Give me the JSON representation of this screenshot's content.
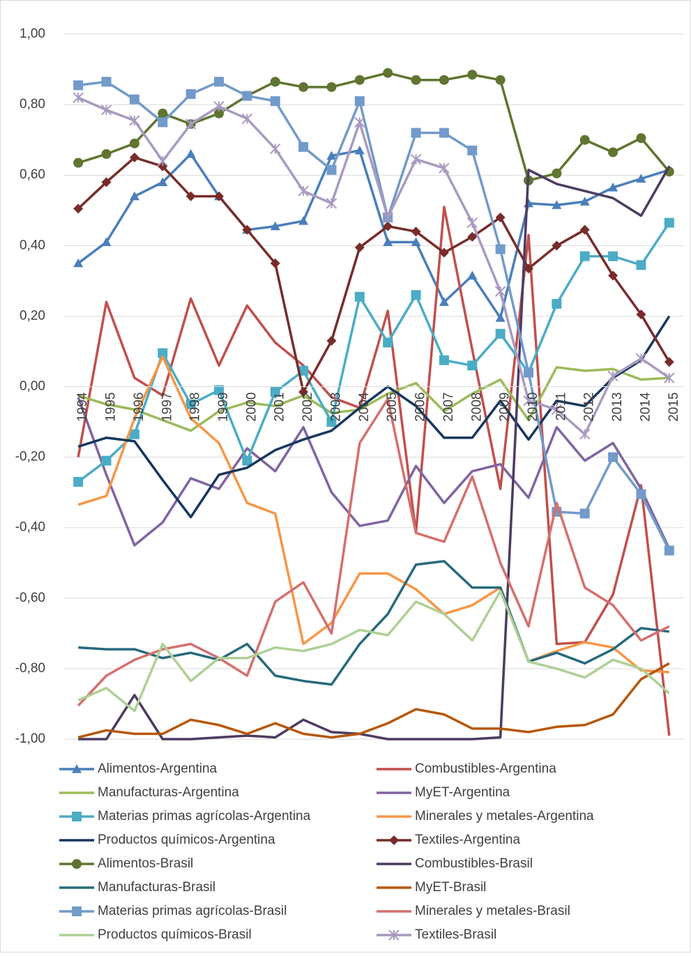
{
  "chart_data": {
    "type": "line",
    "categories": [
      "1994",
      "1995",
      "1996",
      "1997",
      "1998",
      "1999",
      "2000",
      "2001",
      "2002",
      "2003",
      "2004",
      "2005",
      "2006",
      "2007",
      "2008",
      "2009",
      "2010",
      "2011",
      "2012",
      "2013",
      "2014",
      "2015"
    ],
    "ylim": [
      -1,
      1
    ],
    "yticks": [
      {
        "value": -1,
        "label": "-1,00"
      },
      {
        "value": -0.8,
        "label": "-0,80"
      },
      {
        "value": -0.6,
        "label": "-0,60"
      },
      {
        "value": -0.4,
        "label": "-0,40"
      },
      {
        "value": -0.2,
        "label": "-0,20"
      },
      {
        "value": 0,
        "label": "0,00"
      },
      {
        "value": 0.2,
        "label": "0,20"
      },
      {
        "value": 0.4,
        "label": "0,40"
      },
      {
        "value": 0.6,
        "label": "0,60"
      },
      {
        "value": 0.8,
        "label": "0,80"
      },
      {
        "value": 1,
        "label": "1,00"
      }
    ],
    "grid": true,
    "legend": "bottom",
    "series": [
      {
        "name": "Alimentos-Argentina",
        "color": "#4a7ebb",
        "marker": "triangle",
        "values": [
          0.35,
          0.41,
          0.54,
          0.58,
          0.66,
          0.54,
          0.445,
          0.455,
          0.47,
          0.655,
          0.67,
          0.41,
          0.41,
          0.24,
          0.315,
          0.195,
          0.52,
          0.515,
          0.525,
          0.565,
          0.59,
          0.615
        ]
      },
      {
        "name": "Combustibles-Argentina",
        "color": "#c0504d",
        "marker": "none",
        "values": [
          -0.2,
          0.24,
          0.025,
          -0.025,
          0.25,
          0.06,
          0.23,
          0.125,
          0.06,
          -0.03,
          -0.06,
          0.215,
          -0.415,
          0.51,
          0.105,
          -0.29,
          0.43,
          -0.73,
          -0.725,
          -0.59,
          -0.28,
          -0.99
        ]
      },
      {
        "name": "Manufacturas-Argentina",
        "color": "#9bbb59",
        "marker": "none",
        "values": [
          -0.025,
          -0.05,
          -0.065,
          -0.095,
          -0.125,
          -0.07,
          -0.045,
          -0.055,
          -0.025,
          -0.075,
          -0.065,
          -0.02,
          0.01,
          -0.07,
          -0.02,
          0.02,
          -0.095,
          0.055,
          0.045,
          0.05,
          0.02,
          0.025
        ]
      },
      {
        "name": "MyET-Argentina",
        "color": "#8064a2",
        "marker": "none",
        "values": [
          -0.03,
          -0.25,
          -0.45,
          -0.385,
          -0.26,
          -0.29,
          -0.175,
          -0.24,
          -0.115,
          -0.3,
          -0.395,
          -0.38,
          -0.225,
          -0.33,
          -0.24,
          -0.22,
          -0.315,
          -0.115,
          -0.21,
          -0.16,
          -0.29,
          -0.46
        ]
      },
      {
        "name": "Materias primas agrícolas-Argentina",
        "color": "#4bacc6",
        "marker": "square",
        "values": [
          -0.27,
          -0.21,
          -0.135,
          0.095,
          -0.05,
          -0.01,
          -0.21,
          -0.015,
          0.045,
          -0.1,
          0.255,
          0.125,
          0.26,
          0.075,
          0.06,
          0.15,
          0.04,
          0.235,
          0.37,
          0.37,
          0.345,
          0.465
        ]
      },
      {
        "name": "Minerales y metales-Argentina",
        "color": "#f79646",
        "marker": "none",
        "values": [
          -0.335,
          -0.31,
          -0.09,
          0.085,
          -0.09,
          -0.16,
          -0.33,
          -0.36,
          -0.73,
          -0.67,
          -0.53,
          -0.53,
          -0.575,
          -0.645,
          -0.62,
          -0.57,
          -0.78,
          -0.75,
          -0.725,
          -0.74,
          -0.805,
          -0.81
        ]
      },
      {
        "name": "Productos químicos-Argentina",
        "color": "#17375e",
        "marker": "none",
        "values": [
          -0.17,
          -0.145,
          -0.155,
          -0.265,
          -0.37,
          -0.25,
          -0.23,
          -0.18,
          -0.15,
          -0.125,
          -0.06,
          0.0,
          -0.055,
          -0.145,
          -0.145,
          -0.04,
          -0.15,
          -0.04,
          -0.055,
          0.025,
          0.075,
          0.2
        ]
      },
      {
        "name": "Textiles-Argentina",
        "color": "#772c2a",
        "marker": "diamond",
        "values": [
          0.505,
          0.58,
          0.65,
          0.625,
          0.54,
          0.54,
          0.445,
          0.35,
          -0.015,
          0.13,
          0.395,
          0.455,
          0.44,
          0.38,
          0.425,
          0.48,
          0.335,
          0.4,
          0.445,
          0.315,
          0.205,
          0.07
        ]
      },
      {
        "name": "Alimentos-Brasil",
        "color": "#5f7530",
        "marker": "circle",
        "values": [
          0.635,
          0.66,
          0.69,
          0.775,
          0.745,
          0.775,
          0.825,
          0.865,
          0.85,
          0.85,
          0.87,
          0.89,
          0.87,
          0.87,
          0.885,
          0.87,
          0.585,
          0.605,
          0.7,
          0.665,
          0.705,
          0.61
        ]
      },
      {
        "name": "Combustibles-Brasil",
        "color": "#4d3b62",
        "marker": "none",
        "values": [
          -1.0,
          -1.0,
          -0.875,
          -1.0,
          -1.0,
          -0.995,
          -0.99,
          -0.995,
          -0.945,
          -0.98,
          -0.985,
          -1.0,
          -1.0,
          -1.0,
          -1.0,
          -0.995,
          0.615,
          0.575,
          0.555,
          0.535,
          0.485,
          0.625
        ]
      },
      {
        "name": "Manufacturas-Brasil",
        "color": "#276a7c",
        "marker": "none",
        "values": [
          -0.74,
          -0.745,
          -0.745,
          -0.77,
          -0.755,
          -0.775,
          -0.73,
          -0.82,
          -0.835,
          -0.845,
          -0.73,
          -0.645,
          -0.505,
          -0.495,
          -0.57,
          -0.57,
          -0.78,
          -0.755,
          -0.785,
          -0.745,
          -0.685,
          -0.695
        ]
      },
      {
        "name": "MyET-Brasil",
        "color": "#b65708",
        "marker": "none",
        "values": [
          -0.995,
          -0.975,
          -0.985,
          -0.985,
          -0.945,
          -0.96,
          -0.985,
          -0.955,
          -0.985,
          -0.995,
          -0.985,
          -0.955,
          -0.915,
          -0.93,
          -0.97,
          -0.97,
          -0.98,
          -0.965,
          -0.96,
          -0.93,
          -0.83,
          -0.785
        ]
      },
      {
        "name": "Materias primas agrícolas-Brasil",
        "color": "#729aca",
        "marker": "square",
        "values": [
          0.855,
          0.865,
          0.815,
          0.75,
          0.83,
          0.865,
          0.825,
          0.81,
          0.68,
          0.615,
          0.81,
          0.48,
          0.72,
          0.72,
          0.67,
          0.39,
          0.04,
          -0.355,
          -0.36,
          -0.2,
          -0.305,
          -0.465
        ]
      },
      {
        "name": "Minerales y metales-Brasil",
        "color": "#d4706e",
        "marker": "none",
        "values": [
          -0.905,
          -0.82,
          -0.775,
          -0.745,
          -0.73,
          -0.77,
          -0.82,
          -0.61,
          -0.555,
          -0.7,
          -0.16,
          -0.035,
          -0.415,
          -0.44,
          -0.255,
          -0.5,
          -0.68,
          -0.33,
          -0.57,
          -0.62,
          -0.72,
          -0.68
        ]
      },
      {
        "name": "Productos químicos-Brasil",
        "color": "#afd095",
        "marker": "none",
        "values": [
          -0.89,
          -0.855,
          -0.92,
          -0.73,
          -0.835,
          -0.77,
          -0.77,
          -0.74,
          -0.75,
          -0.73,
          -0.69,
          -0.705,
          -0.61,
          -0.645,
          -0.72,
          -0.58,
          -0.78,
          -0.8,
          -0.825,
          -0.775,
          -0.8,
          -0.87
        ]
      },
      {
        "name": "Textiles-Brasil",
        "color": "#a89ac0",
        "marker": "x",
        "values": [
          0.82,
          0.785,
          0.755,
          0.64,
          0.745,
          0.795,
          0.76,
          0.675,
          0.555,
          0.52,
          0.75,
          0.48,
          0.645,
          0.62,
          0.465,
          0.27,
          -0.04,
          -0.065,
          -0.135,
          0.03,
          0.08,
          0.025
        ]
      }
    ]
  }
}
